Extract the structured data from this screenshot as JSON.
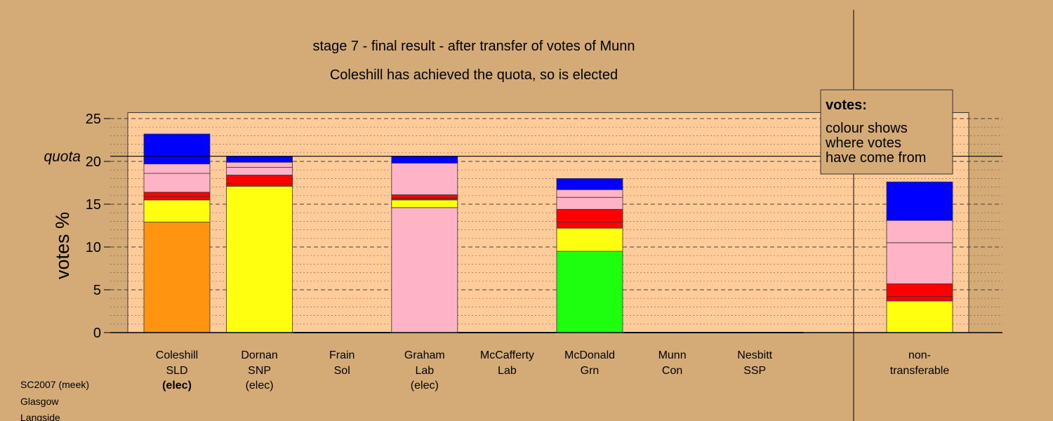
{
  "chart_data": {
    "type": "bar",
    "stacked": true,
    "title": "stage 7 - final result - after transfer of votes of Munn",
    "subtitle": "Coleshill has achieved the quota, so is elected",
    "ylabel": "votes %",
    "ylim": [
      0,
      25
    ],
    "yticks": [
      0,
      5,
      10,
      15,
      20,
      25
    ],
    "quota": 20.6,
    "quota_label": "quota",
    "legend": {
      "title": "votes:",
      "lines": [
        "colour shows",
        "where votes",
        "have come from"
      ]
    },
    "colors": {
      "SLD": "#ff9410",
      "SNP": "#ffff10",
      "Sol": "#ff0000",
      "Lab": "#ffb3c6",
      "Grn": "#1eff10",
      "Con": "#0000ff",
      "SSP": "#ff0000",
      "panel": "#ffcc99",
      "background": "#d4aa77"
    },
    "candidates": [
      {
        "name": "Coleshill",
        "party": "SLD",
        "status": "(elec)",
        "bold_status": true,
        "segments": [
          {
            "from": "SLD",
            "value": 12.9
          },
          {
            "from": "SNP",
            "value": 2.6
          },
          {
            "from": "SSP",
            "value": 0.4
          },
          {
            "from": "Sol",
            "value": 0.5
          },
          {
            "from": "Lab",
            "value": 2.2
          },
          {
            "from": "Lab",
            "value": 1.1
          },
          {
            "from": "Con",
            "value": 3.5
          }
        ]
      },
      {
        "name": "Dornan",
        "party": "SNP",
        "status": "(elec)",
        "bold_status": false,
        "segments": [
          {
            "from": "SNP",
            "value": 17.1
          },
          {
            "from": "SSP",
            "value": 0.3
          },
          {
            "from": "Sol",
            "value": 1.0
          },
          {
            "from": "Lab",
            "value": 0.9
          },
          {
            "from": "Lab",
            "value": 0.6
          },
          {
            "from": "Con",
            "value": 0.7
          }
        ]
      },
      {
        "name": "Frain",
        "party": "Sol",
        "status": "",
        "bold_status": false,
        "segments": []
      },
      {
        "name": "Graham",
        "party": "Lab",
        "status": "(elec)",
        "bold_status": false,
        "segments": [
          {
            "from": "Lab",
            "value": 14.6
          },
          {
            "from": "SNP",
            "value": 0.9
          },
          {
            "from": "SSP",
            "value": 0.2
          },
          {
            "from": "Sol",
            "value": 0.4
          },
          {
            "from": "Lab",
            "value": 3.7
          },
          {
            "from": "Con",
            "value": 0.8
          }
        ]
      },
      {
        "name": "McCafferty",
        "party": "Lab",
        "status": "",
        "bold_status": false,
        "segments": []
      },
      {
        "name": "McDonald",
        "party": "Grn",
        "status": "",
        "bold_status": false,
        "segments": [
          {
            "from": "Grn",
            "value": 9.5
          },
          {
            "from": "SNP",
            "value": 2.7
          },
          {
            "from": "SSP",
            "value": 0.7
          },
          {
            "from": "Sol",
            "value": 1.5
          },
          {
            "from": "Lab",
            "value": 1.4
          },
          {
            "from": "Lab",
            "value": 0.9
          },
          {
            "from": "Con",
            "value": 1.3
          }
        ]
      },
      {
        "name": "Munn",
        "party": "Con",
        "status": "",
        "bold_status": false,
        "segments": []
      },
      {
        "name": "Nesbitt",
        "party": "SSP",
        "status": "",
        "bold_status": false,
        "segments": []
      }
    ],
    "nontransferable": {
      "label_lines": [
        "non-",
        "transferable"
      ],
      "segments": [
        {
          "from": "SNP",
          "value": 3.7
        },
        {
          "from": "SSP",
          "value": 0.5
        },
        {
          "from": "Sol",
          "value": 1.5
        },
        {
          "from": "Lab",
          "value": 4.8
        },
        {
          "from": "Lab",
          "value": 2.6
        },
        {
          "from": "Con",
          "value": 4.5
        }
      ]
    }
  },
  "footer": {
    "lines": [
      "SC2007 (meek)",
      "Glasgow",
      "Langside"
    ]
  }
}
